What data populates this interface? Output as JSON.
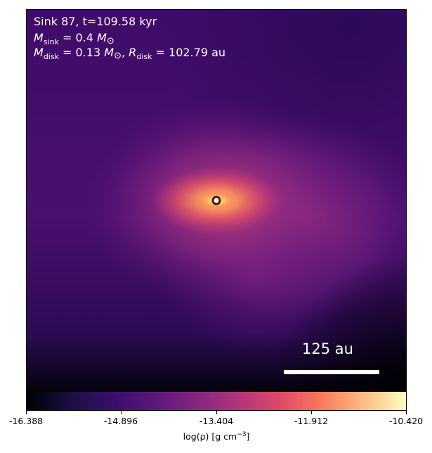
{
  "panel": {
    "title_line1": "Sink 87, t=109.58 kyr",
    "mass_symbol": "M",
    "sink_subscript": "sink",
    "sink_mass_value": "= 0.4",
    "solar_symbol": "⊙",
    "disk_subscript": "disk",
    "disk_mass_value": "= 0.13",
    "radius_symbol": "R",
    "disk_radius_value": "= 102.79 au",
    "comma": ",",
    "scale_label": "125 au"
  },
  "colorbar": {
    "colormap": "inferno",
    "vmin": -16.388,
    "vmax": -10.42,
    "ticks": [
      "-16.388",
      "-14.896",
      "-13.404",
      "-11.912",
      "-10.420"
    ],
    "label_main": "log(ρ) [g cm",
    "label_exp": "−3",
    "label_close": "]"
  },
  "colors": {
    "background_dark": "#000004",
    "inferno_low": "#3b0f70",
    "inferno_mid": "#b73779",
    "inferno_high": "#fcfdbf",
    "sink_marker_fill": "#ffffff",
    "sink_marker_edge": "#3a1d0e"
  }
}
